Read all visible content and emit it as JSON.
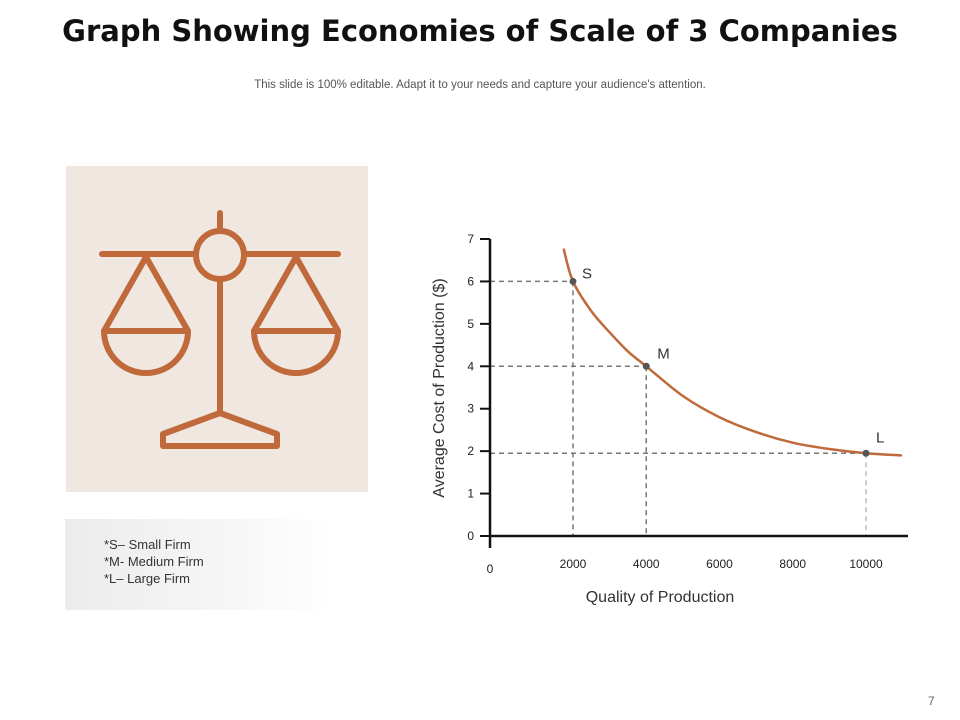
{
  "slide": {
    "title": "Graph Showing Economies of Scale of 3 Companies",
    "subtitle": "This slide is 100% editable. Adapt it to your needs and capture your audience's attention.",
    "page_number": "7"
  },
  "icon": {
    "name": "balance-scale-icon",
    "color": "#c0693a",
    "background": "#f1e7e1"
  },
  "legend": {
    "items": [
      "*S– Small Firm",
      "*M- Medium Firm",
      "*L– Large Firm"
    ]
  },
  "chart_data": {
    "type": "line",
    "xlabel": "Quality of Production",
    "ylabel": "Average Cost of Production ($)",
    "x_ticks": [
      "2000",
      "4000",
      "6000",
      "8000",
      "10000"
    ],
    "x_origin_label": "0",
    "y_ticks": [
      "0",
      "1",
      "2",
      "3",
      "4",
      "5",
      "6",
      "7"
    ],
    "xlim": [
      0,
      11000
    ],
    "ylim": [
      0,
      7
    ],
    "series": [
      {
        "color": "#c0693a",
        "x": [
          1750,
          2000,
          2500,
          3000,
          3500,
          4000,
          5000,
          6000,
          7000,
          8000,
          9000,
          10000,
          10500
        ],
        "y": [
          6.75,
          6.0,
          5.3,
          4.8,
          4.35,
          4.0,
          3.3,
          2.8,
          2.45,
          2.2,
          2.05,
          1.95,
          1.9
        ]
      }
    ],
    "points": [
      {
        "label": "S",
        "x": 2000,
        "y": 6
      },
      {
        "label": "M",
        "x": 4000,
        "y": 4
      },
      {
        "label": "L",
        "x": 10000,
        "y": 1.95
      }
    ],
    "grid": false
  }
}
